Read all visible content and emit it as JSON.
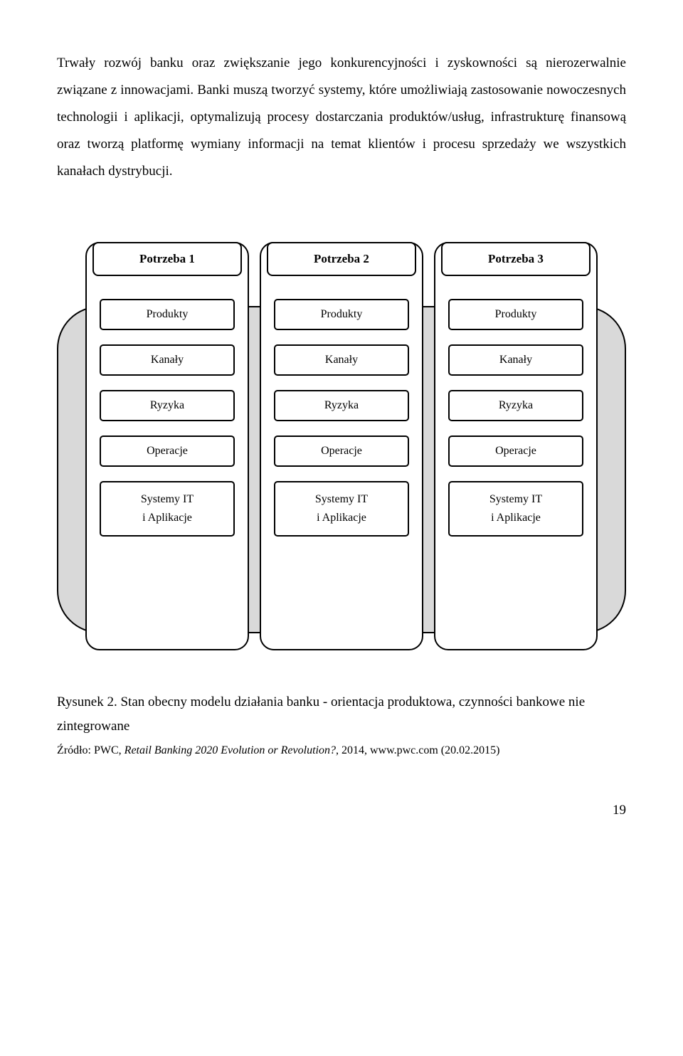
{
  "paragraphs": {
    "p1": "Trwały rozwój banku oraz zwiększanie jego konkurencyjności i zyskowności są nierozerwalnie związane z innowacjami. Banki muszą tworzyć systemy, które umożliwiają zastosowanie nowoczesnych technologii i aplikacji, optymalizują procesy dostarczania produktów/usług, infrastrukturę finansową oraz tworzą platformę wymiany informacji na temat klientów i procesu sprzedaży we wszystkich kanałach dystrybucji."
  },
  "diagram": {
    "type": "infographic",
    "bg_color": "#d9d9d9",
    "border_color": "#000000",
    "pillar_bg": "#ffffff",
    "pillars": [
      {
        "head": "Potrzeba 1",
        "rows": [
          "Produkty",
          "Kanały",
          "Ryzyka",
          "Operacje"
        ],
        "it_line1": "Systemy IT",
        "it_line2": "i Aplikacje"
      },
      {
        "head": "Potrzeba 2",
        "rows": [
          "Produkty",
          "Kanały",
          "Ryzyka",
          "Operacje"
        ],
        "it_line1": "Systemy IT",
        "it_line2": "i Aplikacje"
      },
      {
        "head": "Potrzeba 3",
        "rows": [
          "Produkty",
          "Kanały",
          "Ryzyka",
          "Operacje"
        ],
        "it_line1": "Systemy IT",
        "it_line2": "i Aplikacje"
      }
    ]
  },
  "caption": "Rysunek 2. Stan obecny modelu działania banku - orientacja produktowa, czynności bankowe nie zintegrowane",
  "source_prefix": "Źródło: PWC, ",
  "source_italic": "Retail Banking 2020 Evolution or Revolution?",
  "source_suffix": ", 2014, www.pwc.com (20.02.2015)",
  "page_number": "19"
}
